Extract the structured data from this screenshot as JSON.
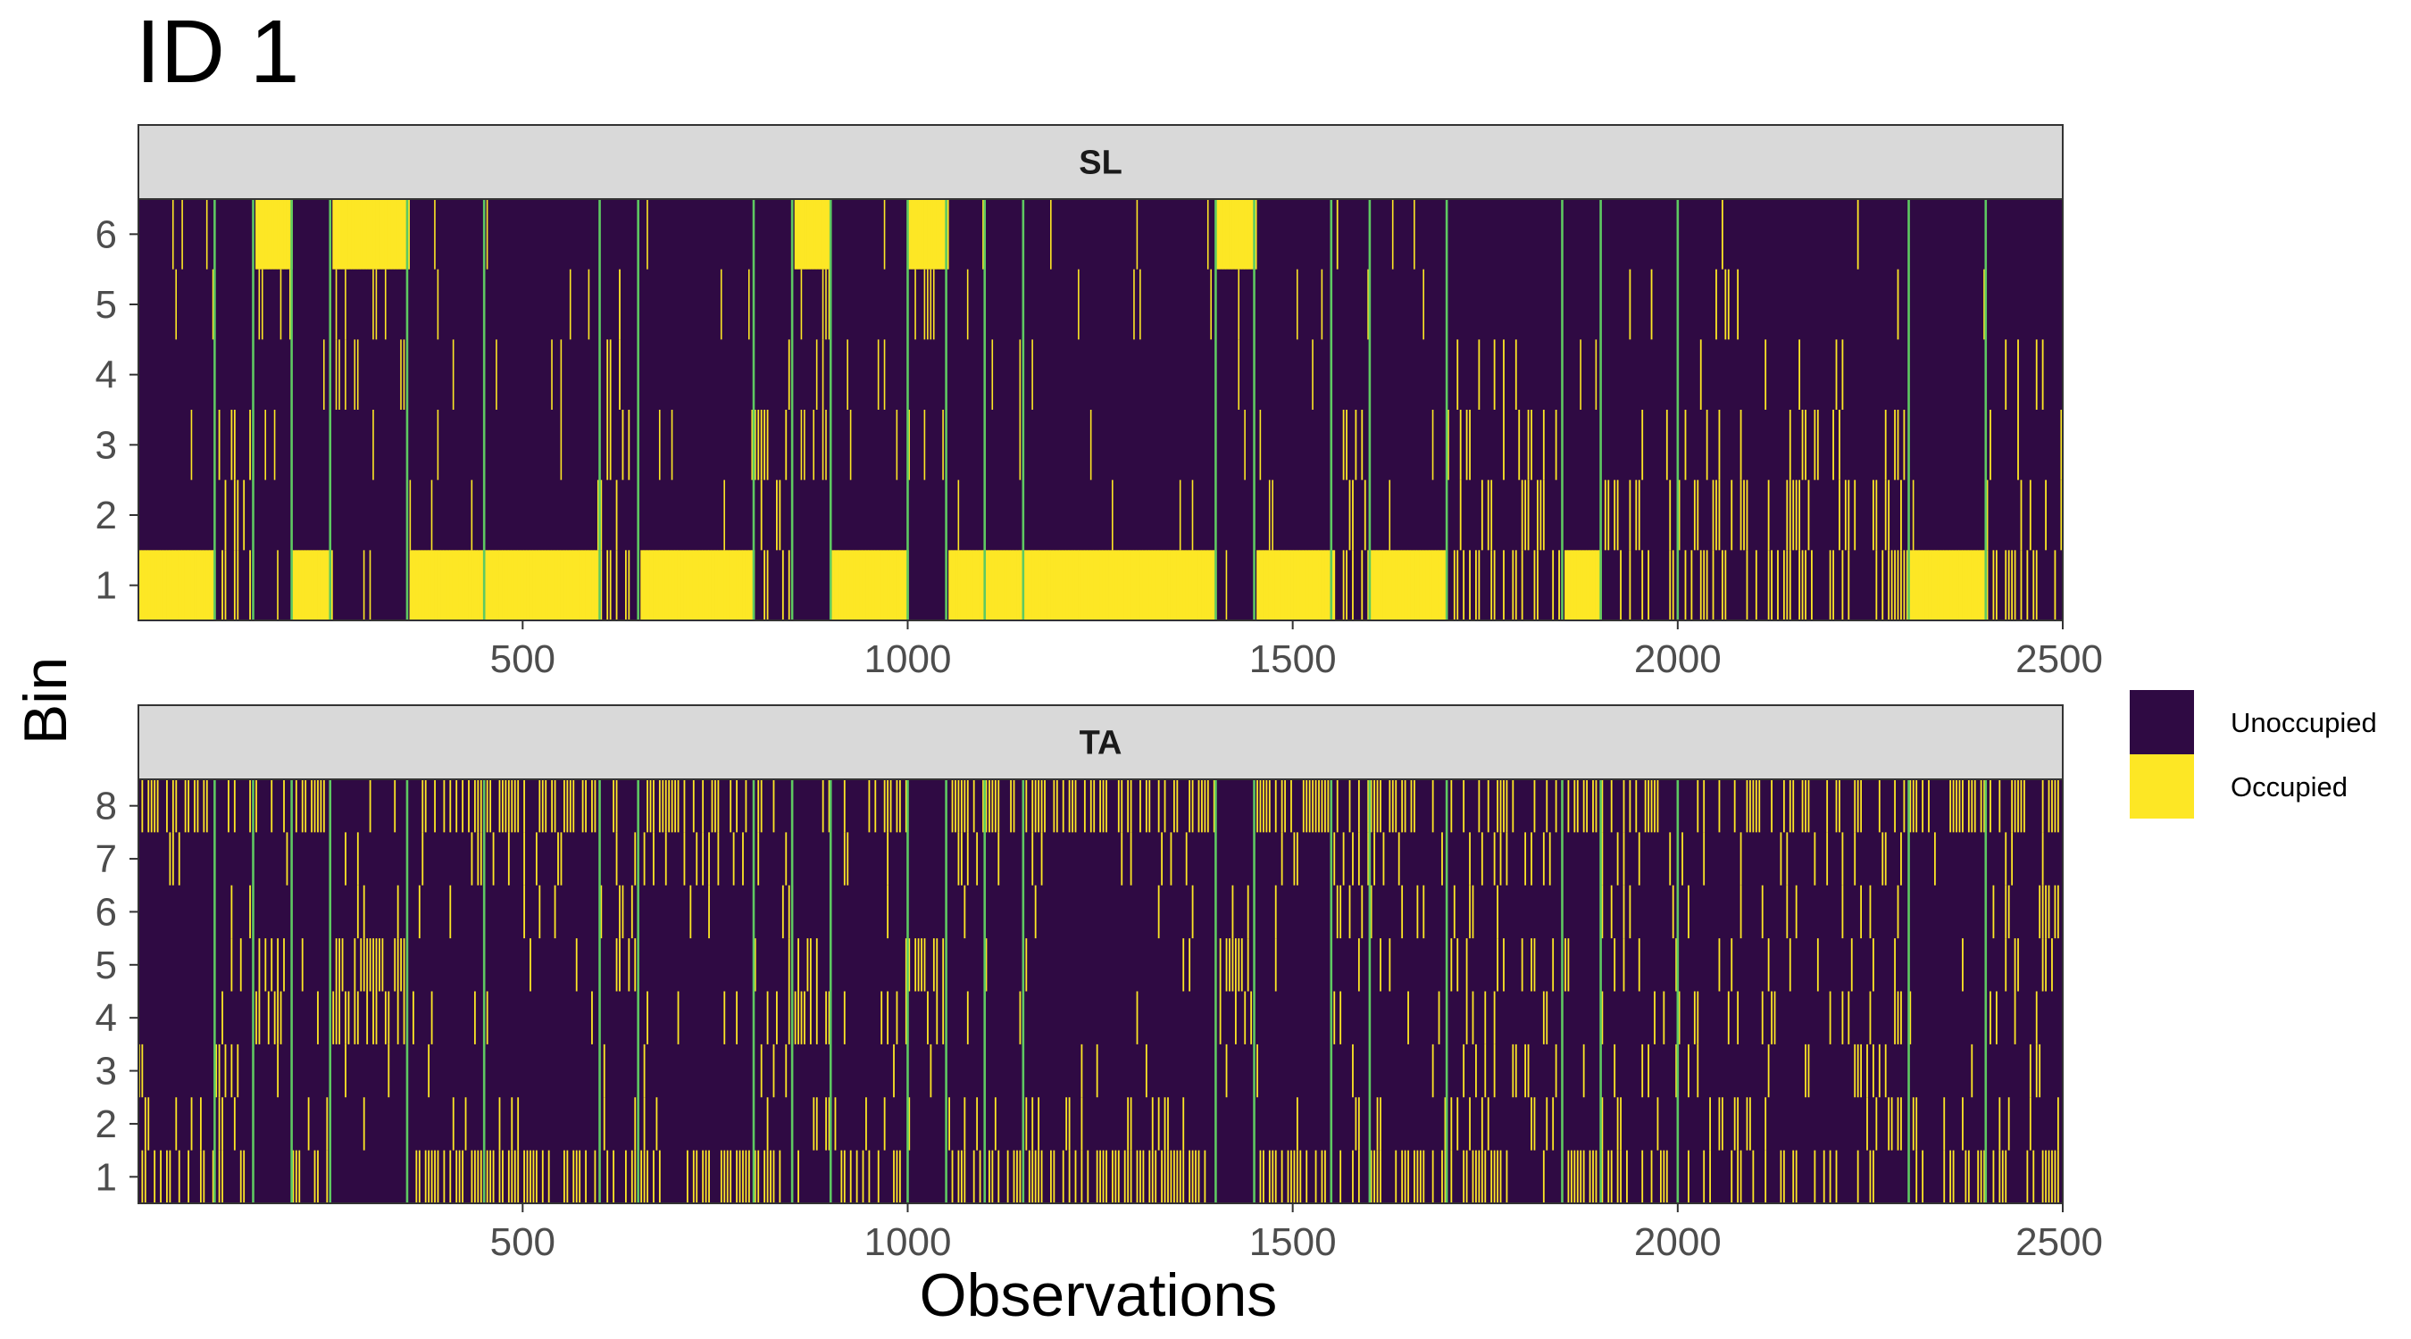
{
  "title": "ID 1",
  "chart_data": {
    "type": "heatmap",
    "xlabel": "Observations",
    "ylabel": "Bin",
    "xlim": [
      1,
      2500
    ],
    "x_ticks": [
      500,
      1000,
      1500,
      2000,
      2500
    ],
    "legend": {
      "position": "right",
      "entries": [
        {
          "label": "Unoccupied",
          "color": "#2f0a43"
        },
        {
          "label": "Occupied",
          "color": "#fde725"
        }
      ]
    },
    "break_color": "#5ec962",
    "breakpoints": [
      100,
      150,
      200,
      250,
      350,
      450,
      600,
      650,
      800,
      850,
      900,
      1000,
      1050,
      1100,
      1150,
      1400,
      1450,
      1550,
      1600,
      1700,
      1850,
      1900,
      2000,
      2300,
      2400
    ],
    "panels": [
      {
        "strip": "SL",
        "bins": [
          1,
          2,
          3,
          4,
          5,
          6
        ],
        "segments": [
          {
            "start": 1,
            "end": 100,
            "occupied_bin": 1
          },
          {
            "start": 100,
            "end": 150,
            "occupied_bin": null
          },
          {
            "start": 150,
            "end": 200,
            "occupied_bin": 6
          },
          {
            "start": 200,
            "end": 250,
            "occupied_bin": 1
          },
          {
            "start": 250,
            "end": 350,
            "occupied_bin": 6
          },
          {
            "start": 350,
            "end": 450,
            "occupied_bin": 1
          },
          {
            "start": 450,
            "end": 600,
            "occupied_bin": 1
          },
          {
            "start": 600,
            "end": 650,
            "occupied_bin": null
          },
          {
            "start": 650,
            "end": 800,
            "occupied_bin": 1
          },
          {
            "start": 800,
            "end": 850,
            "occupied_bin": null
          },
          {
            "start": 850,
            "end": 900,
            "occupied_bin": 6
          },
          {
            "start": 900,
            "end": 1000,
            "occupied_bin": 1
          },
          {
            "start": 1000,
            "end": 1050,
            "occupied_bin": 6
          },
          {
            "start": 1050,
            "end": 1100,
            "occupied_bin": 1
          },
          {
            "start": 1100,
            "end": 1150,
            "occupied_bin": 1
          },
          {
            "start": 1150,
            "end": 1400,
            "occupied_bin": 1
          },
          {
            "start": 1400,
            "end": 1450,
            "occupied_bin": 6
          },
          {
            "start": 1450,
            "end": 1550,
            "occupied_bin": 1
          },
          {
            "start": 1550,
            "end": 1600,
            "occupied_bin": null
          },
          {
            "start": 1600,
            "end": 1700,
            "occupied_bin": 1
          },
          {
            "start": 1700,
            "end": 1850,
            "occupied_bin": null
          },
          {
            "start": 1850,
            "end": 1900,
            "occupied_bin": 1
          },
          {
            "start": 1900,
            "end": 2000,
            "occupied_bin": null
          },
          {
            "start": 2000,
            "end": 2300,
            "occupied_bin": null
          },
          {
            "start": 2300,
            "end": 2400,
            "occupied_bin": 1
          },
          {
            "start": 2400,
            "end": 2500,
            "occupied_bin": null
          }
        ]
      },
      {
        "strip": "TA",
        "bins": [
          1,
          2,
          3,
          4,
          5,
          6,
          7,
          8
        ],
        "segments": []
      }
    ]
  }
}
